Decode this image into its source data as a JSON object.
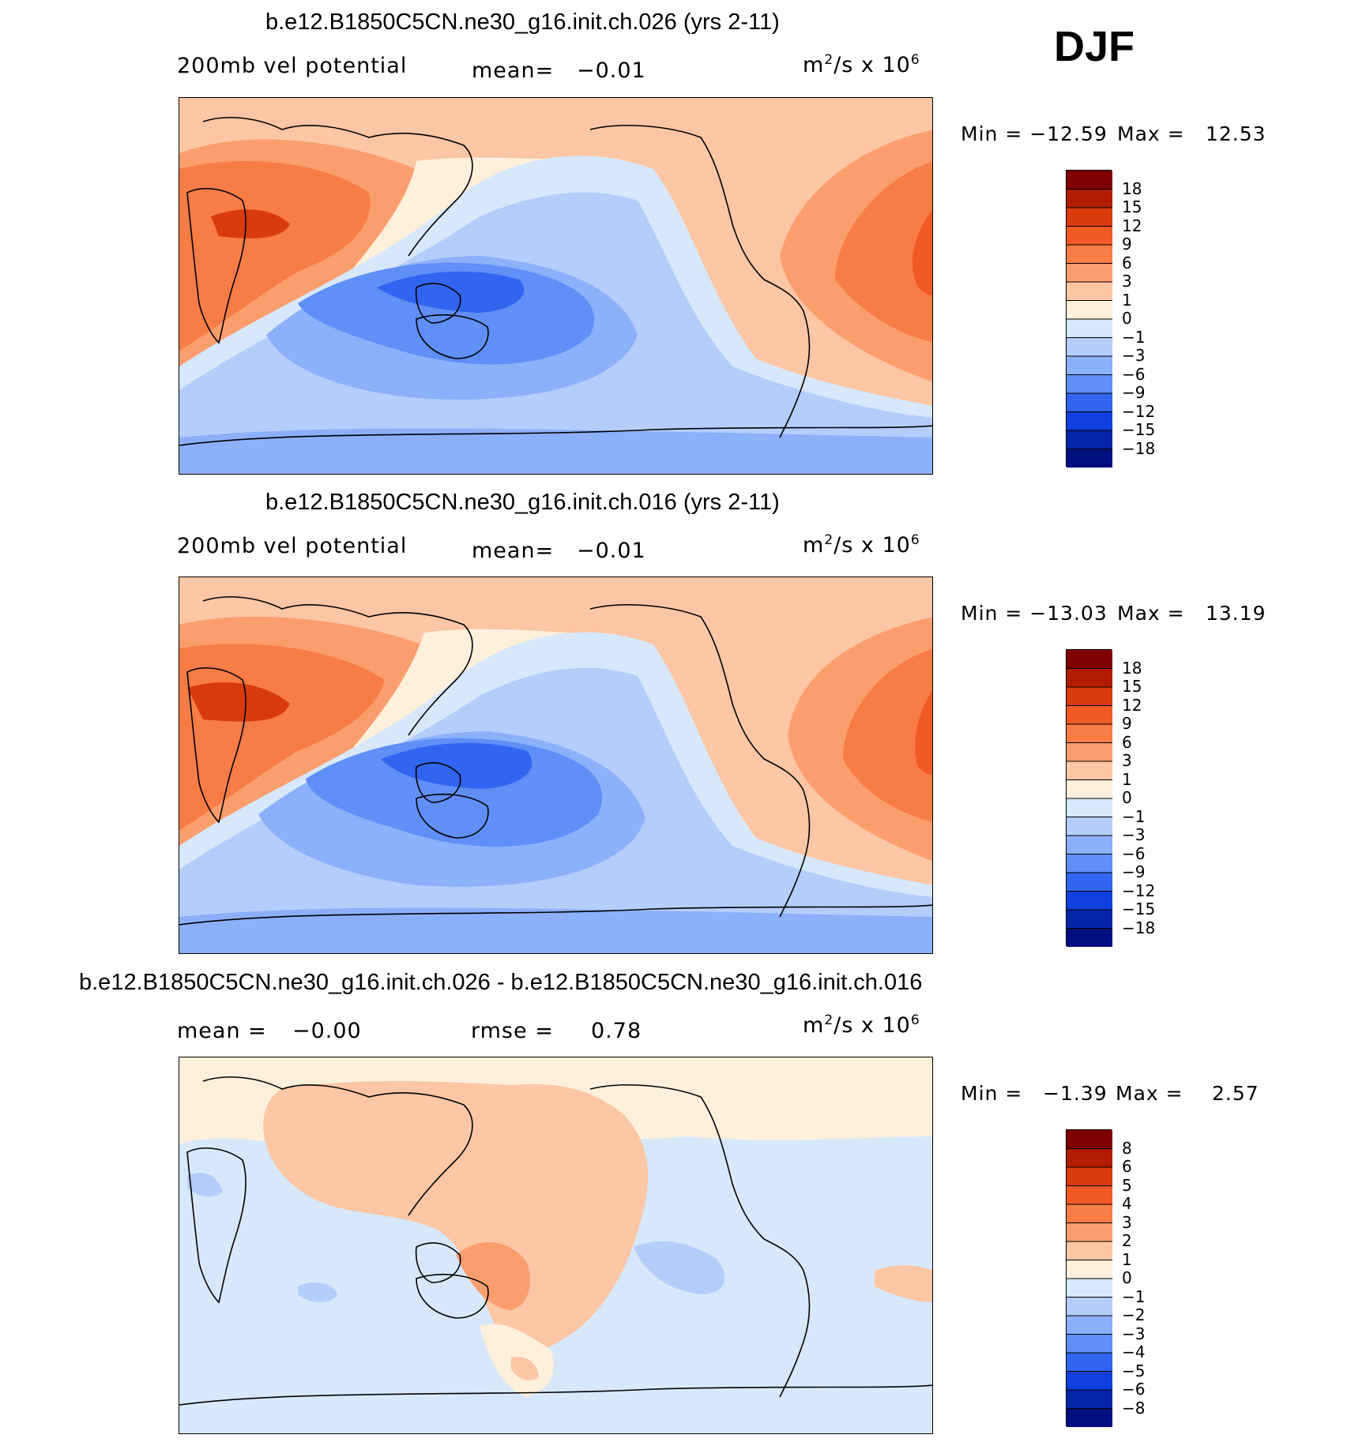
{
  "season": "DJF",
  "units_base": "m",
  "units_exp": "2",
  "units_mid": "/s x 10",
  "units_exp2": "6",
  "land_outline_color": "#000000",
  "panels": [
    {
      "id": "top",
      "title": "b.e12.B1850C5CN.ne30_g16.init.ch.026 (yrs 2-11)",
      "variable": "200mb vel potential",
      "stat_label": "mean=",
      "stat_value": "−0.01",
      "min_label": "Min = −12.59",
      "max_label": "Max =",
      "max_value": "12.53"
    },
    {
      "id": "middle",
      "title": "b.e12.B1850C5CN.ne30_g16.init.ch.016 (yrs 2-11)",
      "variable": "200mb vel potential",
      "stat_label": "mean=",
      "stat_value": "−0.01",
      "min_label": "Min = −13.03",
      "max_label": "Max =",
      "max_value": "13.19"
    },
    {
      "id": "diff",
      "title": "b.e12.B1850C5CN.ne30_g16.init.ch.026 - b.e12.B1850C5CN.ne30_g16.init.ch.016",
      "mean_label": "mean =",
      "mean_value": "−0.00",
      "rmse_label": "rmse =",
      "rmse_value": "0.78",
      "min_label": "Min =",
      "min_value": "−1.39",
      "max_label": "Max =",
      "max_value": "2.57"
    }
  ],
  "colorbar_main": {
    "labels": [
      "18",
      "15",
      "12",
      "9",
      "6",
      "3",
      "1",
      "0",
      "−1",
      "−3",
      "−6",
      "−9",
      "−12",
      "−15",
      "−18"
    ],
    "colors": [
      "#7f0000",
      "#b21c00",
      "#d93b0d",
      "#f25a25",
      "#f77c46",
      "#fb9e6e",
      "#fdc6a4",
      "#fff0dc",
      "#d7e8fb",
      "#b5cdfb",
      "#8db0fb",
      "#5f8ff7",
      "#3265ef",
      "#0f3fdc",
      "#0624a8",
      "#000f7f"
    ]
  },
  "colorbar_diff": {
    "labels": [
      "8",
      "6",
      "5",
      "4",
      "3",
      "2",
      "1",
      "0",
      "−1",
      "−2",
      "−3",
      "−4",
      "−5",
      "−6",
      "−8"
    ],
    "colors": [
      "#7f0000",
      "#b21c00",
      "#d93b0d",
      "#f25a25",
      "#f77c46",
      "#fb9e6e",
      "#fdc6a4",
      "#fff0dc",
      "#d7e8fb",
      "#b5cdfb",
      "#8db0fb",
      "#5f8ff7",
      "#3265ef",
      "#0f3fdc",
      "#0624a8",
      "#000f7f"
    ]
  },
  "chart_data": [
    {
      "type": "heatmap",
      "title": "b.e12.B1850C5CN.ne30_g16.init.ch.026 (yrs 2-11)",
      "variable": "200mb vel potential",
      "units": "m2/s x 10^6",
      "season": "DJF",
      "mean": -0.01,
      "min": -12.59,
      "max": 12.53,
      "contour_levels": [
        -18,
        -15,
        -12,
        -9,
        -6,
        -3,
        -1,
        0,
        1,
        3,
        6,
        9,
        12,
        15,
        18
      ],
      "features": "positive over Africa/Middle East and tropical Atlantic/Americas; negative over Indo-Pacific warm pool and Australia"
    },
    {
      "type": "heatmap",
      "title": "b.e12.B1850C5CN.ne30_g16.init.ch.016 (yrs 2-11)",
      "variable": "200mb vel potential",
      "units": "m2/s x 10^6",
      "season": "DJF",
      "mean": -0.01,
      "min": -13.03,
      "max": 13.19,
      "contour_levels": [
        -18,
        -15,
        -12,
        -9,
        -6,
        -3,
        -1,
        0,
        1,
        3,
        6,
        9,
        12,
        15,
        18
      ]
    },
    {
      "type": "heatmap",
      "title": "b.e12.B1850C5CN.ne30_g16.init.ch.026 - b.e12.B1850C5CN.ne30_g16.init.ch.016",
      "units": "m2/s x 10^6",
      "season": "DJF",
      "mean": -0.0,
      "rmse": 0.78,
      "min": -1.39,
      "max": 2.57,
      "contour_levels": [
        -8,
        -6,
        -5,
        -4,
        -3,
        -2,
        -1,
        0,
        1,
        2,
        3,
        4,
        5,
        6,
        8
      ]
    }
  ]
}
